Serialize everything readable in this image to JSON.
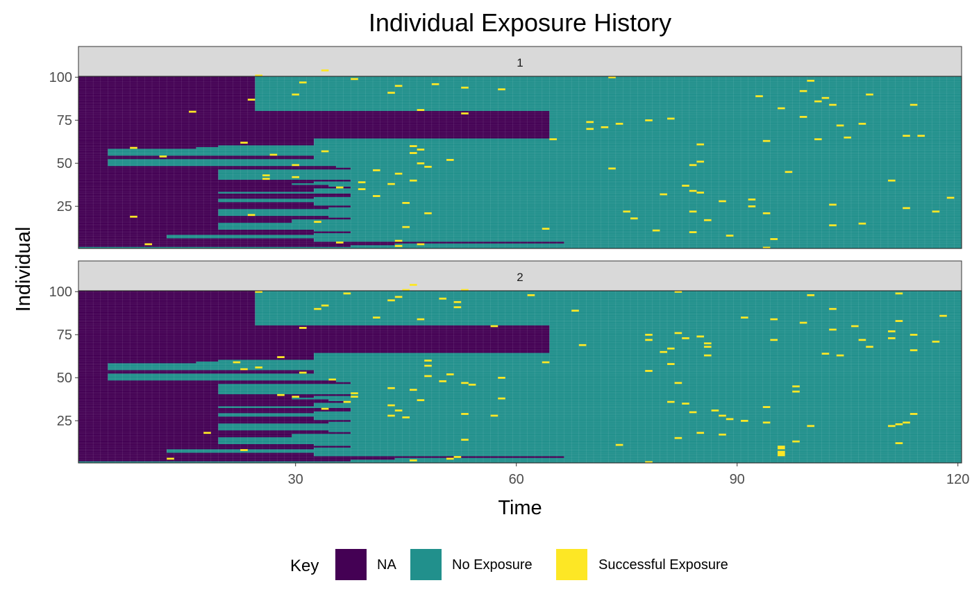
{
  "chart_data": {
    "type": "heatmap",
    "title": "Individual Exposure History",
    "xlabel": "Time",
    "ylabel": "Individual",
    "xlim": [
      1,
      120
    ],
    "ylim": [
      1,
      100
    ],
    "x_ticks": [
      30,
      60,
      90,
      120
    ],
    "y_ticks": [
      25,
      50,
      75,
      100
    ],
    "legend": {
      "title": "Key",
      "position": "bottom",
      "entries": [
        {
          "label": "NA",
          "color": "#440154"
        },
        {
          "label": "No Exposure",
          "color": "#21908C"
        },
        {
          "label": "Successful Exposure",
          "color": "#FDE725"
        }
      ]
    },
    "facets": [
      {
        "label": "1",
        "entry_times": [
          1,
          38,
          44,
          67,
          33,
          33,
          13,
          13,
          33,
          38,
          33,
          20,
          20,
          20,
          20,
          30,
          30,
          38,
          35,
          20,
          20,
          20,
          20,
          35,
          38,
          33,
          33,
          20,
          20,
          33,
          38,
          38,
          20,
          33,
          33,
          38,
          35,
          30,
          33,
          38,
          20,
          20,
          20,
          20,
          20,
          20,
          38,
          36,
          5,
          5,
          5,
          5,
          33,
          33,
          5,
          5,
          5,
          5,
          17,
          20,
          33,
          33,
          33,
          33,
          65,
          65,
          65,
          65,
          65,
          65,
          65,
          65,
          65,
          65,
          65,
          65,
          65,
          65,
          65,
          65,
          25,
          25,
          25,
          25,
          25,
          25,
          25,
          25,
          25,
          25,
          25,
          25,
          25,
          25,
          25,
          25,
          25,
          25,
          25,
          25
        ],
        "successes": [
          [
            94,
            1
          ],
          [
            44,
            2
          ],
          [
            10,
            3
          ],
          [
            47,
            3
          ],
          [
            36,
            4
          ],
          [
            44,
            5
          ],
          [
            95,
            6
          ],
          [
            89,
            8
          ],
          [
            84,
            10
          ],
          [
            79,
            11
          ],
          [
            64,
            12
          ],
          [
            45,
            13
          ],
          [
            103,
            14
          ],
          [
            107,
            15
          ],
          [
            33,
            16
          ],
          [
            86,
            17
          ],
          [
            76,
            18
          ],
          [
            8,
            19
          ],
          [
            24,
            20
          ],
          [
            48,
            21
          ],
          [
            94,
            21
          ],
          [
            117,
            22
          ],
          [
            84,
            22
          ],
          [
            75,
            22
          ],
          [
            113,
            24
          ],
          [
            92,
            25
          ],
          [
            103,
            26
          ],
          [
            45,
            27
          ],
          [
            88,
            28
          ],
          [
            92,
            29
          ],
          [
            119,
            30
          ],
          [
            41,
            31
          ],
          [
            80,
            32
          ],
          [
            85,
            33
          ],
          [
            84,
            34
          ],
          [
            39,
            35
          ],
          [
            36,
            36
          ],
          [
            83,
            37
          ],
          [
            43,
            38
          ],
          [
            39,
            39
          ],
          [
            46,
            40
          ],
          [
            111,
            40
          ],
          [
            26,
            41
          ],
          [
            30,
            42
          ],
          [
            26,
            43
          ],
          [
            44,
            44
          ],
          [
            97,
            45
          ],
          [
            41,
            46
          ],
          [
            73,
            47
          ],
          [
            48,
            48
          ],
          [
            30,
            49
          ],
          [
            84,
            49
          ],
          [
            47,
            50
          ],
          [
            85,
            51
          ],
          [
            51,
            52
          ],
          [
            12,
            54
          ],
          [
            27,
            55
          ],
          [
            46,
            56
          ],
          [
            34,
            57
          ],
          [
            47,
            58
          ],
          [
            8,
            59
          ],
          [
            46,
            60
          ],
          [
            85,
            61
          ],
          [
            23,
            62
          ],
          [
            94,
            63
          ],
          [
            101,
            64
          ],
          [
            65,
            64
          ],
          [
            105,
            65
          ],
          [
            113,
            66
          ],
          [
            115,
            66
          ],
          [
            70,
            70
          ],
          [
            72,
            71
          ],
          [
            104,
            72
          ],
          [
            74,
            73
          ],
          [
            107,
            73
          ],
          [
            70,
            74
          ],
          [
            78,
            75
          ],
          [
            81,
            76
          ],
          [
            99,
            77
          ],
          [
            53,
            79
          ],
          [
            16,
            80
          ],
          [
            47,
            81
          ],
          [
            96,
            82
          ],
          [
            103,
            84
          ],
          [
            114,
            84
          ],
          [
            101,
            86
          ],
          [
            24,
            87
          ],
          [
            102,
            88
          ],
          [
            93,
            89
          ],
          [
            30,
            90
          ],
          [
            108,
            90
          ],
          [
            43,
            91
          ],
          [
            99,
            92
          ],
          [
            58,
            93
          ],
          [
            53,
            94
          ],
          [
            44,
            95
          ],
          [
            49,
            96
          ],
          [
            31,
            97
          ],
          [
            100,
            98
          ],
          [
            38,
            99
          ],
          [
            73,
            100
          ],
          [
            25,
            101
          ],
          [
            34,
            104
          ]
        ]
      },
      {
        "label": "2",
        "entry_times": [
          1,
          38,
          44,
          67,
          33,
          33,
          13,
          13,
          33,
          38,
          33,
          20,
          20,
          20,
          20,
          30,
          30,
          38,
          35,
          20,
          20,
          20,
          20,
          35,
          38,
          33,
          33,
          20,
          20,
          33,
          38,
          38,
          20,
          33,
          33,
          38,
          35,
          30,
          33,
          38,
          20,
          20,
          20,
          20,
          20,
          20,
          38,
          36,
          5,
          5,
          5,
          5,
          33,
          33,
          5,
          5,
          5,
          5,
          17,
          20,
          33,
          33,
          33,
          33,
          65,
          65,
          65,
          65,
          65,
          65,
          65,
          65,
          65,
          65,
          65,
          65,
          65,
          65,
          65,
          65,
          25,
          25,
          25,
          25,
          25,
          25,
          25,
          25,
          25,
          25,
          25,
          25,
          25,
          25,
          25,
          25,
          25,
          25,
          25,
          25
        ],
        "successes": [
          [
            78,
            1
          ],
          [
            46,
            2
          ],
          [
            13,
            3
          ],
          [
            51,
            3
          ],
          [
            52,
            4
          ],
          [
            96,
            5
          ],
          [
            96,
            6
          ],
          [
            96,
            7
          ],
          [
            23,
            8
          ],
          [
            96,
            9
          ],
          [
            96,
            10
          ],
          [
            74,
            11
          ],
          [
            112,
            12
          ],
          [
            98,
            13
          ],
          [
            53,
            14
          ],
          [
            82,
            15
          ],
          [
            88,
            17
          ],
          [
            18,
            18
          ],
          [
            85,
            18
          ],
          [
            111,
            22
          ],
          [
            100,
            22
          ],
          [
            112,
            23
          ],
          [
            113,
            24
          ],
          [
            94,
            24
          ],
          [
            91,
            25
          ],
          [
            89,
            26
          ],
          [
            45,
            27
          ],
          [
            43,
            28
          ],
          [
            57,
            28
          ],
          [
            88,
            28
          ],
          [
            53,
            29
          ],
          [
            114,
            29
          ],
          [
            84,
            30
          ],
          [
            44,
            31
          ],
          [
            87,
            31
          ],
          [
            34,
            32
          ],
          [
            94,
            33
          ],
          [
            43,
            34
          ],
          [
            83,
            35
          ],
          [
            37,
            36
          ],
          [
            81,
            36
          ],
          [
            47,
            37
          ],
          [
            58,
            38
          ],
          [
            30,
            39
          ],
          [
            38,
            39
          ],
          [
            28,
            40
          ],
          [
            38,
            41
          ],
          [
            98,
            42
          ],
          [
            46,
            43
          ],
          [
            43,
            44
          ],
          [
            98,
            45
          ],
          [
            54,
            46
          ],
          [
            53,
            47
          ],
          [
            82,
            47
          ],
          [
            50,
            48
          ],
          [
            35,
            49
          ],
          [
            58,
            50
          ],
          [
            48,
            51
          ],
          [
            51,
            52
          ],
          [
            31,
            53
          ],
          [
            78,
            54
          ],
          [
            23,
            55
          ],
          [
            25,
            56
          ],
          [
            48,
            57
          ],
          [
            81,
            58
          ],
          [
            22,
            59
          ],
          [
            64,
            59
          ],
          [
            48,
            60
          ],
          [
            28,
            62
          ],
          [
            104,
            63
          ],
          [
            86,
            63
          ],
          [
            102,
            64
          ],
          [
            80,
            65
          ],
          [
            114,
            66
          ],
          [
            81,
            67
          ],
          [
            86,
            68
          ],
          [
            108,
            68
          ],
          [
            69,
            69
          ],
          [
            86,
            70
          ],
          [
            117,
            71
          ],
          [
            78,
            72
          ],
          [
            95,
            72
          ],
          [
            107,
            72
          ],
          [
            83,
            73
          ],
          [
            111,
            73
          ],
          [
            85,
            74
          ],
          [
            78,
            75
          ],
          [
            114,
            75
          ],
          [
            82,
            76
          ],
          [
            111,
            77
          ],
          [
            103,
            78
          ],
          [
            31,
            79
          ],
          [
            57,
            80
          ],
          [
            106,
            80
          ],
          [
            99,
            82
          ],
          [
            112,
            83
          ],
          [
            47,
            84
          ],
          [
            95,
            84
          ],
          [
            41,
            85
          ],
          [
            91,
            85
          ],
          [
            118,
            86
          ],
          [
            68,
            89
          ],
          [
            33,
            90
          ],
          [
            103,
            90
          ],
          [
            52,
            91
          ],
          [
            34,
            92
          ],
          [
            52,
            94
          ],
          [
            43,
            95
          ],
          [
            50,
            96
          ],
          [
            44,
            97
          ],
          [
            100,
            98
          ],
          [
            62,
            98
          ],
          [
            37,
            99
          ],
          [
            112,
            99
          ],
          [
            25,
            100
          ],
          [
            82,
            100
          ],
          [
            45,
            101
          ],
          [
            53,
            101
          ],
          [
            46,
            104
          ]
        ]
      }
    ]
  }
}
